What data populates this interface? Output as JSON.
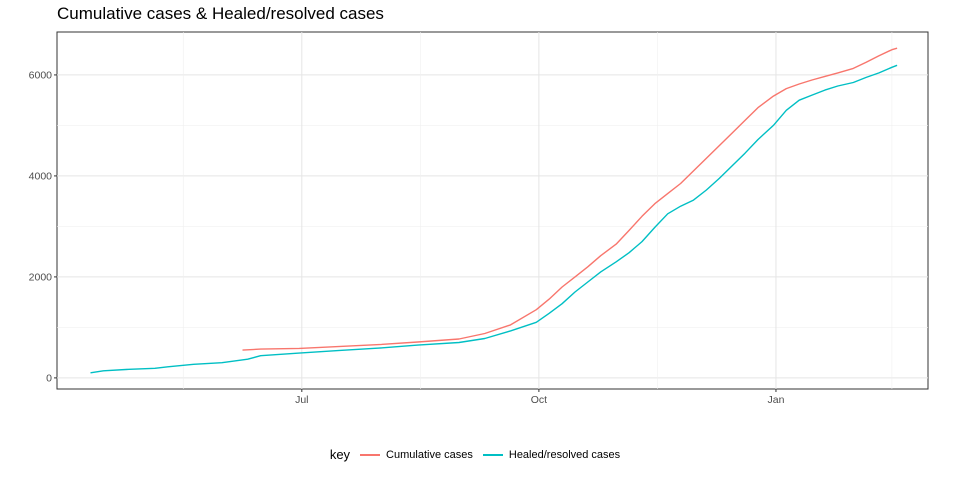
{
  "chart_data": {
    "type": "line",
    "title": "Cumulative cases & Healed/resolved cases",
    "xlabel": "",
    "ylabel": "",
    "x_ticks": [
      "Jul",
      "Oct",
      "Jan"
    ],
    "y_ticks": [
      "0",
      "2000",
      "4000",
      "6000"
    ],
    "ylim": [
      -220,
      6850
    ],
    "grid": true,
    "legend": {
      "title": "key",
      "position": "bottom"
    },
    "series": [
      {
        "name": "Cumulative cases",
        "color": "#F8766D",
        "points": [
          [
            "2020-06-08",
            550
          ],
          [
            "2020-06-15",
            570
          ],
          [
            "2020-06-30",
            585
          ],
          [
            "2020-07-15",
            620
          ],
          [
            "2020-07-31",
            660
          ],
          [
            "2020-08-15",
            710
          ],
          [
            "2020-08-31",
            770
          ],
          [
            "2020-09-10",
            880
          ],
          [
            "2020-09-20",
            1050
          ],
          [
            "2020-09-30",
            1350
          ],
          [
            "2020-10-05",
            1560
          ],
          [
            "2020-10-10",
            1800
          ],
          [
            "2020-10-15",
            2000
          ],
          [
            "2020-10-20",
            2200
          ],
          [
            "2020-10-25",
            2420
          ],
          [
            "2020-10-31",
            2650
          ],
          [
            "2020-11-05",
            2920
          ],
          [
            "2020-11-10",
            3200
          ],
          [
            "2020-11-15",
            3450
          ],
          [
            "2020-11-20",
            3650
          ],
          [
            "2020-11-25",
            3850
          ],
          [
            "2020-11-30",
            4100
          ],
          [
            "2020-12-05",
            4350
          ],
          [
            "2020-12-10",
            4600
          ],
          [
            "2020-12-15",
            4850
          ],
          [
            "2020-12-20",
            5100
          ],
          [
            "2020-12-25",
            5350
          ],
          [
            "2020-12-31",
            5580
          ],
          [
            "2021-01-05",
            5730
          ],
          [
            "2021-01-10",
            5820
          ],
          [
            "2021-01-15",
            5900
          ],
          [
            "2021-01-20",
            5970
          ],
          [
            "2021-01-25",
            6040
          ],
          [
            "2021-01-31",
            6130
          ],
          [
            "2021-02-05",
            6250
          ],
          [
            "2021-02-10",
            6380
          ],
          [
            "2021-02-15",
            6500
          ],
          [
            "2021-02-17",
            6530
          ]
        ]
      },
      {
        "name": "Healed/resolved cases",
        "color": "#00BFC4",
        "points": [
          [
            "2020-04-10",
            100
          ],
          [
            "2020-04-15",
            140
          ],
          [
            "2020-04-25",
            170
          ],
          [
            "2020-05-05",
            190
          ],
          [
            "2020-05-10",
            220
          ],
          [
            "2020-05-20",
            270
          ],
          [
            "2020-05-31",
            300
          ],
          [
            "2020-06-10",
            370
          ],
          [
            "2020-06-15",
            440
          ],
          [
            "2020-06-30",
            490
          ],
          [
            "2020-07-15",
            540
          ],
          [
            "2020-07-31",
            590
          ],
          [
            "2020-08-15",
            650
          ],
          [
            "2020-08-31",
            700
          ],
          [
            "2020-09-10",
            780
          ],
          [
            "2020-09-20",
            930
          ],
          [
            "2020-09-30",
            1100
          ],
          [
            "2020-10-05",
            1280
          ],
          [
            "2020-10-10",
            1470
          ],
          [
            "2020-10-15",
            1700
          ],
          [
            "2020-10-20",
            1900
          ],
          [
            "2020-10-25",
            2100
          ],
          [
            "2020-10-31",
            2300
          ],
          [
            "2020-11-05",
            2480
          ],
          [
            "2020-11-10",
            2700
          ],
          [
            "2020-11-15",
            2980
          ],
          [
            "2020-11-20",
            3250
          ],
          [
            "2020-11-25",
            3400
          ],
          [
            "2020-11-30",
            3520
          ],
          [
            "2020-12-05",
            3720
          ],
          [
            "2020-12-10",
            3950
          ],
          [
            "2020-12-15",
            4200
          ],
          [
            "2020-12-20",
            4450
          ],
          [
            "2020-12-25",
            4720
          ],
          [
            "2020-12-31",
            5000
          ],
          [
            "2021-01-05",
            5300
          ],
          [
            "2021-01-10",
            5500
          ],
          [
            "2021-01-15",
            5600
          ],
          [
            "2021-01-20",
            5700
          ],
          [
            "2021-01-25",
            5780
          ],
          [
            "2021-01-31",
            5850
          ],
          [
            "2021-02-05",
            5950
          ],
          [
            "2021-02-10",
            6040
          ],
          [
            "2021-02-15",
            6150
          ],
          [
            "2021-02-17",
            6190
          ]
        ]
      }
    ]
  }
}
